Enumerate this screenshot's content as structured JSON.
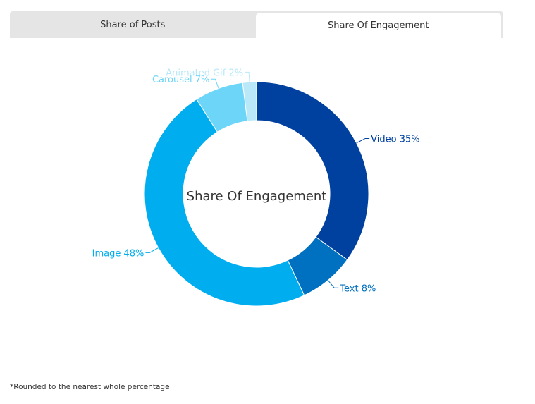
{
  "tabs": [
    {
      "label": "Share of Posts",
      "active": false
    },
    {
      "label": "Share Of Engagement",
      "active": true
    }
  ],
  "chart_data": {
    "type": "pie",
    "variant": "donut",
    "center_label": "Share Of Engagement",
    "categories": [
      "Video",
      "Text",
      "Image",
      "Carousel",
      "Animated Gif"
    ],
    "values": [
      35,
      8,
      48,
      7,
      2
    ],
    "unit": "%",
    "labels": [
      "Video 35%",
      "Text 8%",
      "Image 48%",
      "Carousel 7%",
      "Animated Gif 2%"
    ],
    "colors": [
      "#0041a0",
      "#0070c0",
      "#00adef",
      "#6dd5f7",
      "#b9e8f8"
    ]
  },
  "footnote": "*Rounded to the nearest whole percentage"
}
